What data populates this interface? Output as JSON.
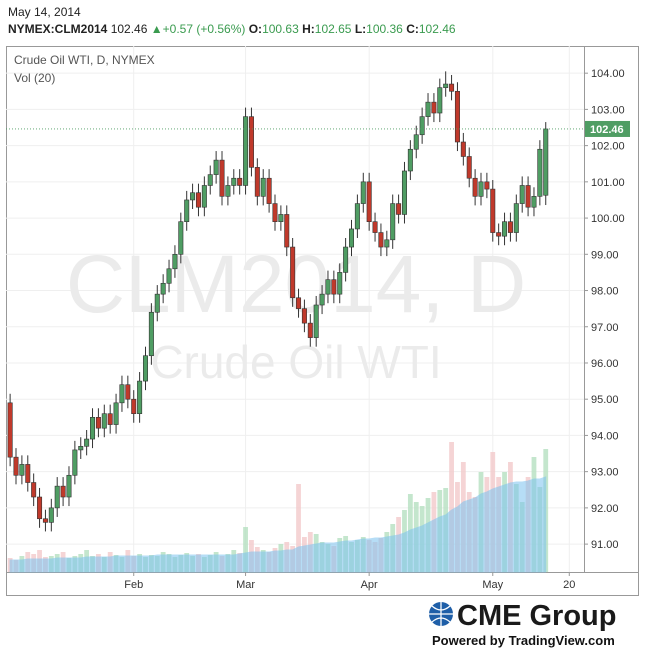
{
  "header": {
    "date": "May 14, 2014",
    "symbol": "NYMEX:CLM2014",
    "last": "102.46",
    "arrow": "▲",
    "change": "+0.57 (+0.56%)",
    "ohlc": [
      {
        "label": "O:",
        "value": "100.63"
      },
      {
        "label": "H:",
        "value": "102.65"
      },
      {
        "label": "L:",
        "value": "100.36"
      },
      {
        "label": "C:",
        "value": "102.46"
      }
    ]
  },
  "chart_data": {
    "type": "candlestick",
    "title": "Crude Oil WTI, D, NYMEX",
    "volume_title": "Vol (20)",
    "watermark": [
      "CLM2014, D",
      "Crude Oil WTI"
    ],
    "up_color": "#4f9d63",
    "down_color": "#c0392b",
    "volume_up_color": "#b5e0c0",
    "volume_down_color": "#f2c9cb",
    "volume_ma_color": "#7cc3ef",
    "open": [
      94.9,
      93.4,
      92.9,
      93.2,
      92.7,
      92.3,
      91.7,
      91.6,
      92.0,
      92.6,
      92.3,
      92.9,
      93.6,
      93.7,
      93.9,
      94.5,
      94.2,
      94.6,
      94.3,
      94.9,
      95.4,
      95.0,
      94.6,
      95.5,
      96.2,
      97.4,
      97.9,
      98.2,
      98.6,
      99.0,
      99.9,
      100.5,
      100.7,
      100.3,
      100.9,
      101.2,
      101.6,
      100.6,
      100.9,
      101.1,
      100.9,
      102.8,
      101.4,
      100.6,
      101.1,
      100.4,
      99.9,
      100.1,
      99.2,
      97.8,
      97.5,
      97.1,
      96.7,
      97.6,
      97.9,
      98.3,
      97.9,
      98.5,
      99.2,
      99.7,
      100.4,
      101.0,
      99.9,
      99.6,
      99.2,
      99.4,
      100.4,
      100.1,
      101.3,
      101.9,
      102.3,
      102.8,
      103.2,
      102.9,
      103.6,
      103.7,
      103.5,
      102.1,
      101.7,
      101.1,
      100.6,
      101.0,
      100.8,
      99.6,
      99.5,
      99.9,
      99.6,
      100.4,
      100.9,
      100.3,
      100.6,
      100.63
    ],
    "high": [
      95.15,
      93.65,
      93.45,
      93.45,
      92.95,
      92.55,
      91.95,
      92.25,
      92.85,
      92.85,
      93.15,
      93.85,
      93.95,
      94.15,
      94.75,
      94.75,
      94.85,
      94.85,
      95.15,
      95.65,
      95.65,
      95.25,
      95.75,
      96.45,
      97.65,
      98.15,
      98.45,
      98.85,
      99.25,
      100.15,
      100.75,
      100.95,
      100.95,
      101.15,
      101.45,
      101.85,
      101.85,
      101.15,
      101.35,
      101.35,
      103.05,
      103.05,
      101.65,
      101.35,
      101.35,
      100.65,
      100.35,
      100.35,
      99.45,
      98.05,
      97.75,
      97.35,
      97.85,
      98.15,
      98.55,
      98.55,
      98.75,
      99.45,
      99.95,
      100.65,
      101.25,
      101.25,
      100.15,
      99.85,
      99.65,
      100.65,
      100.65,
      101.55,
      102.15,
      102.55,
      103.05,
      103.45,
      103.45,
      103.85,
      104.05,
      103.95,
      103.75,
      102.35,
      101.95,
      101.35,
      101.25,
      101.25,
      101.05,
      99.85,
      100.15,
      100.15,
      100.65,
      101.15,
      101.15,
      100.85,
      102.15,
      102.65
    ],
    "low": [
      93.15,
      92.65,
      92.65,
      92.45,
      92.05,
      91.45,
      91.35,
      91.35,
      91.75,
      92.05,
      92.05,
      92.65,
      93.35,
      93.45,
      93.65,
      93.95,
      93.95,
      94.05,
      94.05,
      94.65,
      94.75,
      94.35,
      94.35,
      95.25,
      95.95,
      97.15,
      97.65,
      97.95,
      98.35,
      98.75,
      99.65,
      100.25,
      100.05,
      100.05,
      100.65,
      100.95,
      100.35,
      100.35,
      100.65,
      100.65,
      100.65,
      101.15,
      100.35,
      100.35,
      100.15,
      99.65,
      99.65,
      98.95,
      97.55,
      97.25,
      96.85,
      96.45,
      96.45,
      97.35,
      97.65,
      97.65,
      97.65,
      98.25,
      98.95,
      99.45,
      100.15,
      99.65,
      99.35,
      98.95,
      98.95,
      99.15,
      99.85,
      99.85,
      101.05,
      101.65,
      102.05,
      102.55,
      102.65,
      102.65,
      103.35,
      103.25,
      101.85,
      101.45,
      100.85,
      100.35,
      100.35,
      100.55,
      99.35,
      99.25,
      99.25,
      99.35,
      99.35,
      100.15,
      100.05,
      100.05,
      100.35,
      100.36
    ],
    "close": [
      93.4,
      92.9,
      93.2,
      92.7,
      92.3,
      91.7,
      91.6,
      92.0,
      92.6,
      92.3,
      92.9,
      93.6,
      93.7,
      93.9,
      94.5,
      94.2,
      94.6,
      94.3,
      94.9,
      95.4,
      95.0,
      94.6,
      95.5,
      96.2,
      97.4,
      97.9,
      98.2,
      98.6,
      99.0,
      99.9,
      100.5,
      100.7,
      100.3,
      100.9,
      101.2,
      101.6,
      100.6,
      100.9,
      101.1,
      100.9,
      102.8,
      101.4,
      100.6,
      101.1,
      100.4,
      99.9,
      100.1,
      99.2,
      97.8,
      97.5,
      97.1,
      96.7,
      97.6,
      97.9,
      98.3,
      97.9,
      98.5,
      99.2,
      99.7,
      100.4,
      101.0,
      99.9,
      99.6,
      99.2,
      99.4,
      100.4,
      100.1,
      101.3,
      101.9,
      102.3,
      102.8,
      103.2,
      102.9,
      103.6,
      103.7,
      103.5,
      102.1,
      101.7,
      101.1,
      100.6,
      101.0,
      100.8,
      99.6,
      99.5,
      99.9,
      99.6,
      100.4,
      100.9,
      100.3,
      100.6,
      101.9,
      102.46
    ],
    "volume": [
      14,
      12,
      16,
      20,
      18,
      22,
      15,
      16,
      18,
      20,
      14,
      16,
      18,
      22,
      16,
      18,
      15,
      20,
      17,
      15,
      22,
      16,
      18,
      15,
      17,
      16,
      20,
      18,
      15,
      17,
      19,
      16,
      18,
      15,
      17,
      20,
      16,
      18,
      22,
      19,
      45,
      32,
      25,
      22,
      20,
      24,
      28,
      30,
      26,
      88,
      35,
      40,
      38,
      30,
      28,
      26,
      34,
      36,
      30,
      32,
      35,
      32,
      30,
      34,
      40,
      48,
      55,
      62,
      78,
      70,
      66,
      74,
      80,
      82,
      84,
      130,
      90,
      110,
      80,
      75,
      100,
      95,
      120,
      95,
      100,
      110,
      88,
      70,
      95,
      115,
      85,
      123
    ],
    "volume_ma": [
      12,
      12,
      12,
      13,
      13,
      13,
      13,
      13,
      14,
      14,
      14,
      14,
      14,
      15,
      15,
      15,
      15,
      15,
      16,
      16,
      16,
      16,
      16,
      16,
      16,
      17,
      17,
      17,
      17,
      17,
      17,
      17,
      17,
      17,
      17,
      17,
      17,
      17,
      17,
      18,
      19,
      20,
      20,
      20,
      20,
      21,
      21,
      22,
      22,
      25,
      26,
      27,
      28,
      29,
      29,
      29,
      30,
      31,
      31,
      32,
      33,
      33,
      34,
      34,
      35,
      36,
      37,
      39,
      42,
      44,
      46,
      49,
      52,
      55,
      57,
      62,
      65,
      70,
      72,
      74,
      78,
      80,
      83,
      85,
      87,
      89,
      90,
      90,
      91,
      93,
      93,
      95
    ],
    "ylim": [
      90.23,
      104.75
    ],
    "yticks": [
      {
        "value": 91,
        "label": "91.00"
      },
      {
        "value": 92,
        "label": "92.00"
      },
      {
        "value": 93,
        "label": "93.00"
      },
      {
        "value": 94,
        "label": "94.00"
      },
      {
        "value": 95,
        "label": "95.00"
      },
      {
        "value": 96,
        "label": "96.00"
      },
      {
        "value": 97,
        "label": "97.00"
      },
      {
        "value": 98,
        "label": "98.00"
      },
      {
        "value": 99,
        "label": "99.00"
      },
      {
        "value": 100,
        "label": "100.00"
      },
      {
        "value": 101,
        "label": "101.00"
      },
      {
        "value": 102,
        "label": "102.00"
      },
      {
        "value": 103,
        "label": "103.00"
      },
      {
        "value": 104,
        "label": "104.00"
      }
    ],
    "xlim": [
      -0.7,
      97.5
    ],
    "xticks": [
      {
        "value": 21,
        "label": "Feb"
      },
      {
        "value": 40,
        "label": "Mar"
      },
      {
        "value": 61,
        "label": "Apr"
      },
      {
        "value": 82,
        "label": "May"
      },
      {
        "value": 95,
        "label": "20"
      }
    ],
    "grid": true
  },
  "footer": {
    "logo": "CME Group",
    "powered": "Powered by TradingView.com"
  }
}
